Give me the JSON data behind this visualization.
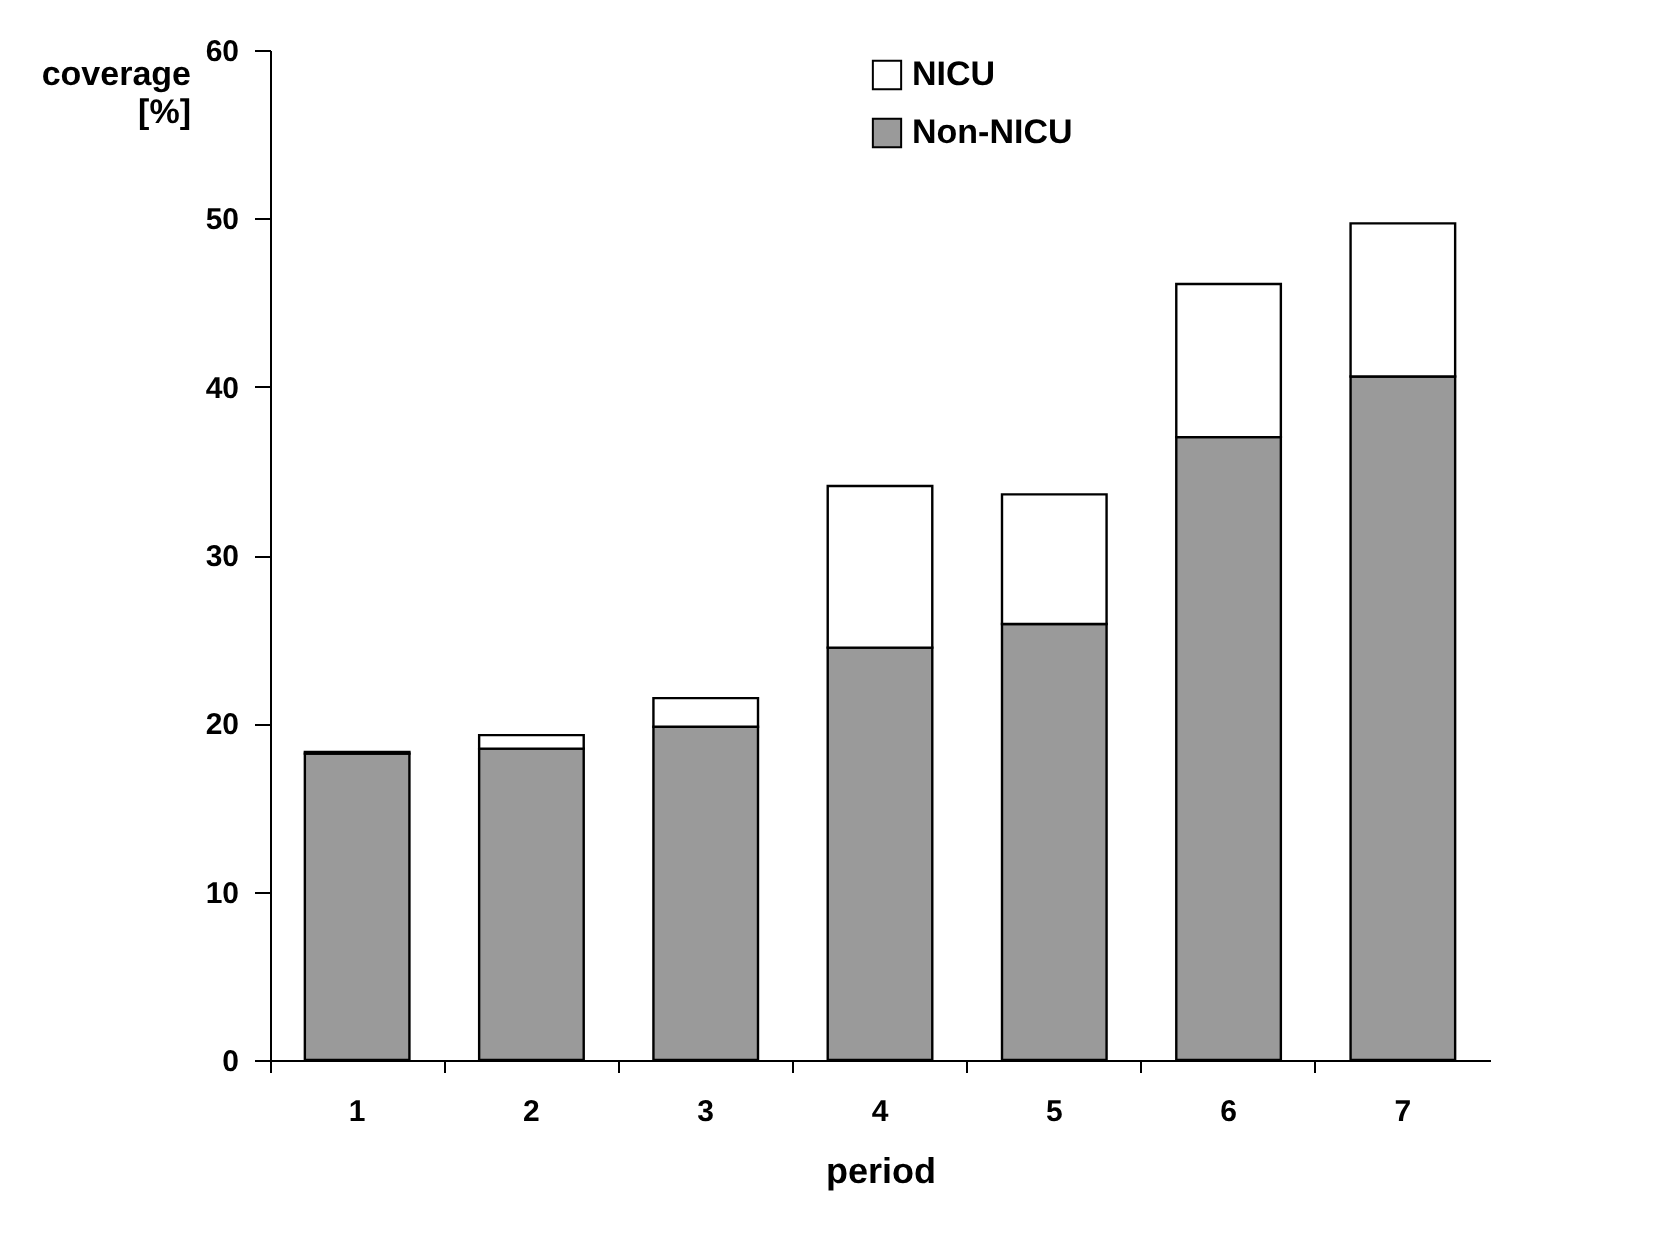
{
  "chart_data": {
    "type": "bar",
    "stacked": true,
    "xlabel": "period",
    "ylabel": "coverage [%]",
    "categories": [
      "1",
      "2",
      "3",
      "4",
      "5",
      "6",
      "7"
    ],
    "series": [
      {
        "name": "Non-NICU",
        "color": "#9a9a9a",
        "values": [
          18.2,
          18.5,
          19.8,
          24.5,
          25.9,
          37.0,
          40.6
        ]
      },
      {
        "name": "NICU",
        "color": "#ffffff",
        "values": [
          0.1,
          0.8,
          1.7,
          9.6,
          7.7,
          9.1,
          9.1
        ]
      }
    ],
    "ylim": [
      0,
      60
    ],
    "yticks": [
      0,
      10,
      20,
      30,
      40,
      50,
      60
    ],
    "grid": false,
    "legend": "top"
  }
}
